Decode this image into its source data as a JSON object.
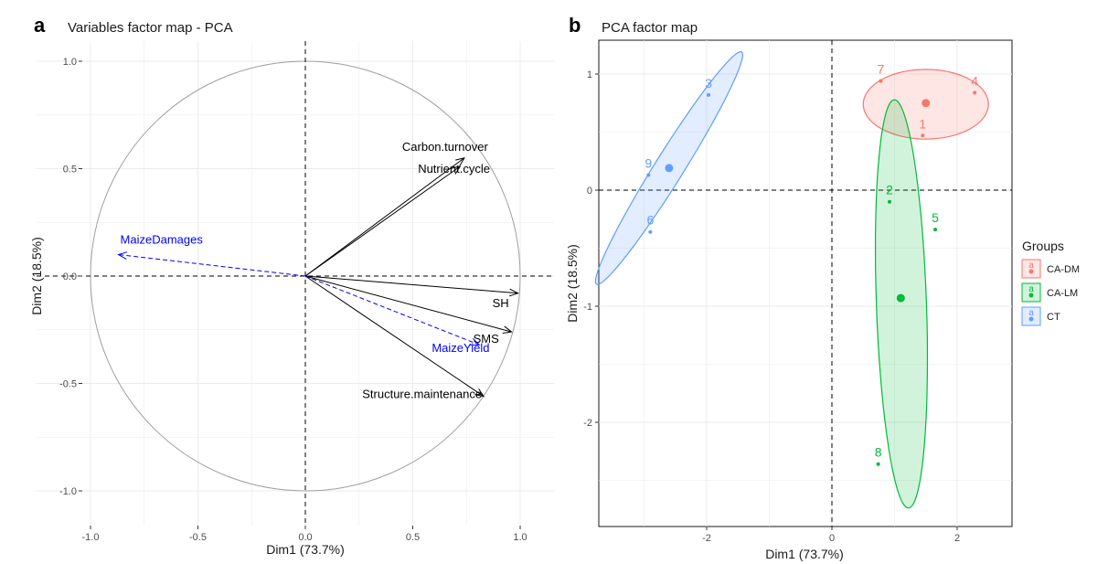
{
  "panels": [
    {
      "letter": "a",
      "title": "Variables factor map - PCA"
    },
    {
      "letter": "b",
      "title": "PCA factor map"
    }
  ],
  "colors": {
    "CA-DM": "#F8766D",
    "CA-LM": "#00BA38",
    "CT": "#619CFF",
    "arrow": "#000000",
    "supp": "#0000FF",
    "circle": "#9e9e9e",
    "grid": "#ebebeb"
  },
  "chart_data": [
    {
      "type": "scatter",
      "subtype": "pca-variables-correlation-circle",
      "title": "Variables factor map - PCA",
      "xlabel": "Dim1 (73.7%)",
      "ylabel": "Dim2 (18.5%)",
      "xlim": [
        -1.0,
        1.0
      ],
      "ylim": [
        -1.0,
        1.0
      ],
      "xticks": [
        "-1.0",
        "-0.5",
        "0.0",
        "0.5",
        "1.0"
      ],
      "yticks": [
        "-1.0",
        "-0.5",
        "0.0",
        "0.5",
        "1.0"
      ],
      "grid": true,
      "unit_circle": true,
      "variables": [
        {
          "name": "Carbon.turnover",
          "x": 0.74,
          "y": 0.55,
          "supplementary": false
        },
        {
          "name": "Nutrient.cycle",
          "x": 0.72,
          "y": 0.51,
          "supplementary": false
        },
        {
          "name": "SH",
          "x": 0.99,
          "y": -0.08,
          "supplementary": false
        },
        {
          "name": "SMS",
          "x": 0.96,
          "y": -0.26,
          "supplementary": false
        },
        {
          "name": "Structure.maintenance",
          "x": 0.83,
          "y": -0.56,
          "supplementary": false
        },
        {
          "name": "MaizeDamages",
          "x": -0.87,
          "y": 0.1,
          "supplementary": true
        },
        {
          "name": "MaizeYield",
          "x": 0.81,
          "y": -0.32,
          "supplementary": true
        }
      ]
    },
    {
      "type": "scatter",
      "subtype": "pca-individuals-with-ellipses",
      "title": "PCA factor map",
      "xlabel": "Dim1 (73.7%)",
      "ylabel": "Dim2 (18.5%)",
      "xlim": [
        -3.6,
        2.9
      ],
      "ylim": [
        -2.88,
        1.25
      ],
      "xticks": [
        -2,
        0,
        2
      ],
      "yticks": [
        1,
        0,
        -1,
        -2
      ],
      "grid": true,
      "legend": {
        "title": "Groups",
        "position": "right",
        "entries": [
          "CA-DM",
          "CA-LM",
          "CT"
        ]
      },
      "groups": [
        {
          "name": "CA-DM",
          "points": [
            {
              "label": "1",
              "x": 1.45,
              "y": 0.47
            },
            {
              "label": "4",
              "x": 2.28,
              "y": 0.84
            },
            {
              "label": "7",
              "x": 0.78,
              "y": 0.94
            }
          ],
          "centroid": {
            "x": 1.5,
            "y": 0.75
          }
        },
        {
          "name": "CA-LM",
          "points": [
            {
              "label": "2",
              "x": 0.92,
              "y": -0.1
            },
            {
              "label": "5",
              "x": 1.65,
              "y": -0.34
            },
            {
              "label": "8",
              "x": 0.74,
              "y": -2.36
            }
          ],
          "centroid": {
            "x": 1.1,
            "y": -0.93
          }
        },
        {
          "name": "CT",
          "points": [
            {
              "label": "3",
              "x": -1.97,
              "y": 0.82
            },
            {
              "label": "6",
              "x": -2.9,
              "y": -0.36
            },
            {
              "label": "9",
              "x": -2.93,
              "y": 0.13
            }
          ],
          "centroid": {
            "x": -2.6,
            "y": 0.19
          }
        }
      ]
    }
  ]
}
